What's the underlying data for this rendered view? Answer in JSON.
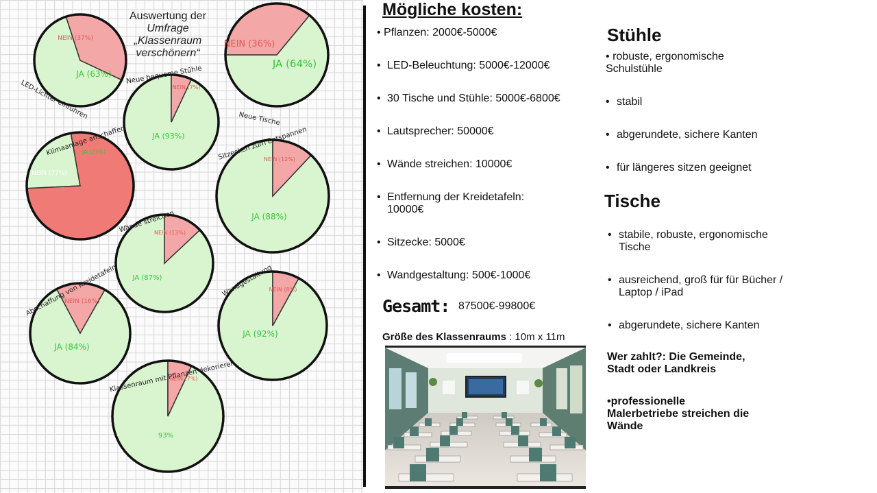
{
  "survey": {
    "title_line1": "Auswertung der",
    "title_line2": "Umfrage",
    "title_line3": "„Klassenraum",
    "title_line4": "verschönern“"
  },
  "chart_data": {
    "type": "pie",
    "title": "Auswertung der Umfrage „Klassenraum verschönern“",
    "charts": [
      {
        "label": "LED-Lichter einführen",
        "yes": 63,
        "no": 37,
        "yes_text": "JA (63%)",
        "no_text": "NEIN (37%)"
      },
      {
        "label": "Neue bequeme Stühle",
        "yes": 93,
        "no": 7,
        "yes_text": "JA (93%)",
        "no_text": "NEIN (7%)"
      },
      {
        "label": "Neue Tische",
        "yes": 64,
        "no": 36,
        "yes_text": "JA (64%)",
        "no_text": "NEIN (36%)"
      },
      {
        "label": "Klimaanlage anschaffen",
        "yes": 23,
        "no": 77,
        "yes_text": "JA (23%)",
        "no_text": "NEIN (77%)"
      },
      {
        "label": "Sitzecken zum Entspannen",
        "yes": 88,
        "no": 12,
        "yes_text": "JA (88%)",
        "no_text": "NEIN (12%)"
      },
      {
        "label": "Wände streichen",
        "yes": 87,
        "no": 13,
        "yes_text": "JA (87%)",
        "no_text": "NEIN (13%)"
      },
      {
        "label": "Abschaffung von Kreidetafeln",
        "yes": 84,
        "no": 16,
        "yes_text": "JA (84%)",
        "no_text": "NEIN (16%)"
      },
      {
        "label": "Wandgestaltung",
        "yes": 92,
        "no": 8,
        "yes_text": "JA (92%)",
        "no_text": "NEIN (8%)"
      },
      {
        "label": "Klassenraum mit Pflanzen dekorieren",
        "yes": 93,
        "no": 7,
        "yes_text": "93%",
        "no_text": "NEIN (7%)"
      }
    ],
    "colors": {
      "yes": "#d8f5cf",
      "no": "#f4a7a7",
      "no_strong": "#f07a76",
      "outline": "#111111",
      "yes_text": "#3ac43a",
      "no_text": "#e05a5a"
    }
  },
  "costs": {
    "heading": "Mögliche kosten:",
    "items": [
      "Pflanzen: 2000€-5000€",
      "LED-Beleuchtung: 5000€-12000€",
      "30 Tische und Stühle: 5000€-6800€",
      "Lautsprecher: 50000€",
      "Wände streichen: 10000€",
      "Entfernung der Kreidetafeln: 10000€",
      "Sitzecke: 5000€",
      "Wandgestaltung: 500€-1000€"
    ],
    "bullet": "•",
    "total_label": "Gesamt:",
    "total_value": "87500€-99800€",
    "room_size_label": "Größe des Klassenraums",
    "room_size_value": ": 10m x 11m"
  },
  "chairs": {
    "heading": "Stühle",
    "items": [
      "robuste, ergonomische Schulstühle",
      "stabil",
      "abgerundete, sichere Kanten",
      "für längeres sitzen geeignet"
    ]
  },
  "tables": {
    "heading": "Tische",
    "items": [
      "stabile, robuste, ergonomische Tische",
      "ausreichend, groß für für Bücher / Laptop / iPad",
      "abgerundete, sichere Kanten"
    ]
  },
  "payer": {
    "line1": "Wer zahlt?: Die Gemeinde,",
    "line2": "Stadt oder Landkreis"
  },
  "painters": {
    "line1": "•professionelle",
    "line2": "Malerbetriebe streichen die",
    "line3": "Wände"
  }
}
